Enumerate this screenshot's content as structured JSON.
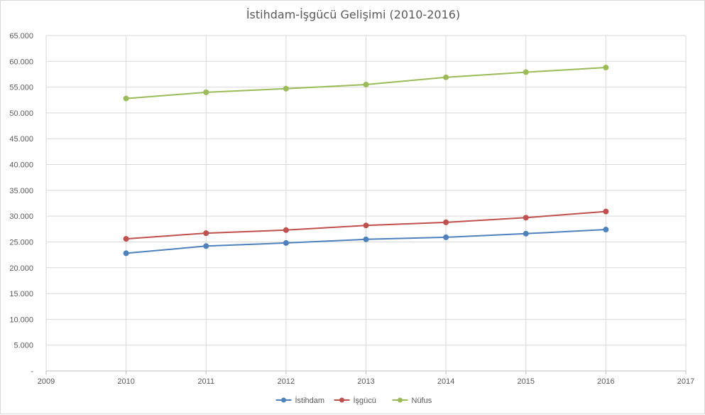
{
  "chart_data": {
    "type": "line",
    "title": "İstihdam-İşgücü Gelişimi (2010-2016)",
    "xlabel": "",
    "ylabel": "",
    "xlim": [
      2009,
      2017
    ],
    "ylim": [
      0,
      65000
    ],
    "x_ticks": [
      2009,
      2010,
      2011,
      2012,
      2013,
      2014,
      2015,
      2016,
      2017
    ],
    "x_tick_labels": [
      "2009",
      "2010",
      "2011",
      "2012",
      "2013",
      "2014",
      "2015",
      "2016",
      "2017"
    ],
    "y_ticks": [
      0,
      5000,
      10000,
      15000,
      20000,
      25000,
      30000,
      35000,
      40000,
      45000,
      50000,
      55000,
      60000,
      65000
    ],
    "y_tick_labels": [
      "-",
      "5.000",
      "10.000",
      "15.000",
      "20.000",
      "25.000",
      "30.000",
      "35.000",
      "40.000",
      "45.000",
      "50.000",
      "55.000",
      "60.000",
      "65.000"
    ],
    "grid": true,
    "legend_position": "bottom",
    "x": [
      2010,
      2011,
      2012,
      2013,
      2014,
      2015,
      2016
    ],
    "series": [
      {
        "name": "İstihdam",
        "color": "#4f81bd",
        "values": [
          22800,
          24200,
          24800,
          25500,
          25900,
          26600,
          27400
        ]
      },
      {
        "name": "İşgücü",
        "color": "#c0504d",
        "values": [
          25600,
          26700,
          27300,
          28200,
          28800,
          29700,
          30900
        ]
      },
      {
        "name": "Nüfus",
        "color": "#9bbb59",
        "values": [
          52800,
          54000,
          54700,
          55500,
          56900,
          57900,
          58800
        ]
      }
    ]
  }
}
